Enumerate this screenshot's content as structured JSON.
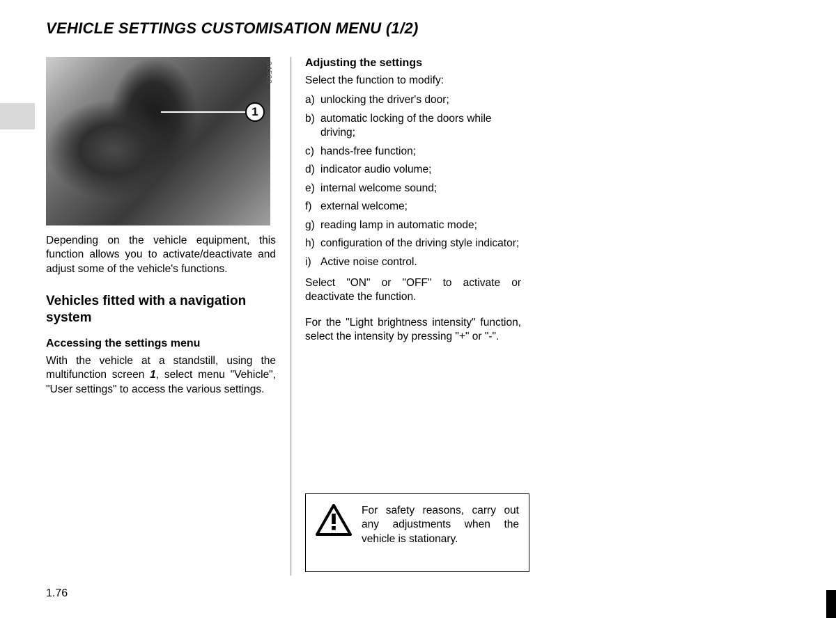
{
  "title": "VEHICLE SETTINGS CUSTOMISATION MENU (1/2)",
  "photo_ref": "34503",
  "callout_num": "1",
  "intro": "Depending on the vehicle equipment, this function allows you to activate/deactivate and adjust some of the vehicle's functions.",
  "section1_heading": "Vehicles fitted with a navigation system",
  "sub1_heading": "Accessing the settings menu",
  "sub1_para_a": "With the vehicle at a standstill, using the multifunction screen ",
  "sub1_ref": "1",
  "sub1_para_b": ", select menu \"Vehicle\", \"User settings\" to access the various settings.",
  "sub2_heading": "Adjusting the settings",
  "sub2_intro": "Select the function to modify:",
  "settings_list": [
    {
      "letter": "a)",
      "text": "unlocking the driver's door;"
    },
    {
      "letter": "b)",
      "text": "automatic locking of the doors while driving;"
    },
    {
      "letter": "c)",
      "text": "hands-free function;"
    },
    {
      "letter": "d)",
      "text": "indicator audio volume;"
    },
    {
      "letter": "e)",
      "text": "internal welcome sound;"
    },
    {
      "letter": "f)",
      "text": "external welcome;"
    },
    {
      "letter": "g)",
      "text": "reading lamp in automatic mode;"
    },
    {
      "letter": "h)",
      "text": "configuration of the driving style indicator;"
    },
    {
      "letter": "i)",
      "text": "Active noise control."
    }
  ],
  "para_onoff": "Select \"ON\" or \"OFF\" to activate or deactivate the function.",
  "para_brightness": "For the \"Light brightness intensity\" function, select the intensity by pressing \"+\" or \"-\".",
  "warning_text": "For safety reasons, carry out any adjustments when the vehicle is stationary.",
  "page_number": "1.76"
}
